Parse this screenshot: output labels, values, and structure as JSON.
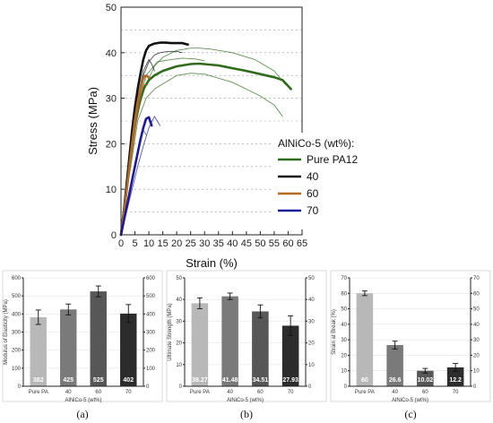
{
  "chart_data": [
    {
      "type": "line",
      "xlabel": "Strain (%)",
      "ylabel": "Stress (MPa)",
      "xlim": [
        0,
        65
      ],
      "ylim": [
        0,
        50
      ],
      "xticks": [
        "0",
        "5",
        "10",
        "15",
        "20",
        "25",
        "30",
        "35",
        "40",
        "45",
        "50",
        "55",
        "60",
        "65"
      ],
      "yticks": [
        "0",
        "10",
        "20",
        "30",
        "40",
        "50"
      ],
      "grid": true,
      "legend": {
        "title": "AlNiCo-5 (wt%):",
        "placement": "lower-right",
        "entries": [
          "Pure PA12",
          "40",
          "60",
          "70"
        ]
      },
      "series": [
        {
          "name": "Pure PA12",
          "color": "#2e6b1a",
          "curves": [
            {
              "emphasis": true,
              "x": [
                0,
                1,
                2,
                3,
                4,
                5,
                6,
                7,
                8,
                9,
                10,
                12,
                15,
                20,
                25,
                28,
                35,
                40,
                45,
                50,
                55,
                58,
                61
              ],
              "y": [
                0,
                5,
                10,
                15,
                20,
                24,
                27,
                30,
                32,
                33,
                34,
                35,
                36,
                37,
                37.5,
                37.6,
                37.2,
                36.6,
                36,
                35.3,
                34.6,
                34,
                32
              ]
            },
            {
              "emphasis": false,
              "x": [
                0,
                3,
                6,
                9,
                12,
                15,
                20,
                25,
                28,
                32,
                40,
                48,
                55,
                59
              ],
              "y": [
                0,
                14,
                27,
                33,
                37,
                39,
                40.5,
                41,
                41,
                40.8,
                40,
                38.5,
                36,
                33
              ]
            },
            {
              "emphasis": false,
              "x": [
                0,
                3,
                6,
                9,
                12,
                16,
                20,
                25,
                30,
                40,
                50,
                55,
                58
              ],
              "y": [
                0,
                13,
                25,
                30,
                32,
                33.5,
                35,
                35.5,
                35.3,
                33.5,
                30.5,
                28.5,
                26
              ]
            },
            {
              "emphasis": false,
              "x": [
                0,
                3,
                6,
                9,
                13,
                18,
                22,
                27,
                30
              ],
              "y": [
                0,
                14,
                28,
                35,
                38,
                38.5,
                38.8,
                38.6,
                38.2
              ]
            }
          ]
        },
        {
          "name": "40",
          "color": "#111111",
          "curves": [
            {
              "emphasis": true,
              "x": [
                0,
                1,
                2,
                3,
                4,
                5,
                6,
                7,
                8,
                9,
                10,
                12,
                14,
                16,
                18,
                20,
                22,
                24
              ],
              "y": [
                0,
                5,
                11,
                17,
                23,
                28,
                32,
                35.5,
                38.5,
                40.5,
                41.5,
                42,
                42.2,
                42.2,
                42.1,
                42.1,
                42.1,
                41.8
              ]
            },
            {
              "emphasis": false,
              "x": [
                0,
                2,
                4,
                6,
                8,
                10,
                12,
                14,
                16,
                18,
                20,
                22
              ],
              "y": [
                0,
                10,
                20,
                29,
                35,
                38,
                39.5,
                40,
                40.2,
                40.3,
                40.3,
                40
              ]
            },
            {
              "emphasis": false,
              "x": [
                0,
                2,
                4,
                6,
                8,
                10,
                11,
                12
              ],
              "y": [
                0,
                10,
                21,
                30,
                36,
                38.5,
                37.5,
                36
              ]
            }
          ]
        },
        {
          "name": "60",
          "color": "#b36a24",
          "curves": [
            {
              "emphasis": true,
              "x": [
                0,
                1,
                2,
                3,
                4,
                5,
                6,
                7,
                8,
                9,
                10
              ],
              "y": [
                0,
                4.5,
                9.5,
                15,
                20,
                25,
                29,
                32,
                34.5,
                35,
                34.5
              ]
            },
            {
              "emphasis": false,
              "x": [
                0,
                2,
                4,
                6,
                8,
                9
              ],
              "y": [
                0,
                10,
                20,
                29,
                34.5,
                34
              ]
            },
            {
              "emphasis": false,
              "x": [
                0,
                2,
                4,
                6,
                8,
                9.5
              ],
              "y": [
                0,
                9,
                18,
                27,
                33,
                33
              ]
            }
          ]
        },
        {
          "name": "70",
          "color": "#1a1a9a",
          "curves": [
            {
              "emphasis": true,
              "x": [
                0,
                1,
                2,
                3,
                4,
                5,
                6,
                7,
                8,
                9,
                10,
                11
              ],
              "y": [
                0,
                3,
                6,
                9,
                12,
                15,
                18,
                21,
                23.5,
                25.5,
                25.8,
                24
              ]
            },
            {
              "emphasis": false,
              "x": [
                0,
                2,
                4,
                6,
                8,
                10,
                12,
                14
              ],
              "y": [
                0,
                5,
                10,
                15,
                19.5,
                23.5,
                26,
                24
              ]
            },
            {
              "emphasis": false,
              "x": [
                0,
                2,
                4,
                6,
                8,
                9
              ],
              "y": [
                0,
                6,
                12,
                18,
                23,
                22
              ]
            }
          ]
        }
      ]
    },
    {
      "type": "bar",
      "panel_label": "(a)",
      "categories": [
        "Pure PA",
        "40",
        "60",
        "70"
      ],
      "values": [
        382,
        425,
        525,
        402
      ],
      "errors": [
        40,
        30,
        30,
        50
      ],
      "value_labels": [
        "382",
        "425",
        "525",
        "402"
      ],
      "ylabel": "Modulus of Elasticity (MPa)",
      "xlabel": "AlNiCo-5 (wt%)",
      "ylim": [
        0,
        600
      ],
      "yticks": [
        "0",
        "100",
        "200",
        "300",
        "400",
        "500",
        "600"
      ],
      "y2ticks": [
        "0",
        "100",
        "200",
        "300",
        "400",
        "500",
        "600"
      ],
      "colors": [
        "#b8b8b8",
        "#7a7a7a",
        "#575757",
        "#2c2c2c"
      ]
    },
    {
      "type": "bar",
      "panel_label": "(b)",
      "categories": [
        "Pure PA",
        "40",
        "60",
        "70"
      ],
      "values": [
        38.27,
        41.48,
        34.51,
        27.93
      ],
      "errors": [
        2.5,
        1.5,
        3,
        4.5
      ],
      "value_labels": [
        "38.27",
        "41.48",
        "34.51",
        "27.93"
      ],
      "ylabel": "Ultimate Strength (MPa)",
      "xlabel": "AlNiCo-5 (wt%)",
      "ylim": [
        0,
        50
      ],
      "yticks": [
        "0",
        "10",
        "20",
        "30",
        "40",
        "50"
      ],
      "y2ticks": [
        "0",
        "10",
        "20",
        "30",
        "40",
        "50"
      ],
      "colors": [
        "#b8b8b8",
        "#7a7a7a",
        "#575757",
        "#2c2c2c"
      ]
    },
    {
      "type": "bar",
      "panel_label": "(c)",
      "categories": [
        "Pure PA",
        "40",
        "60",
        "70"
      ],
      "values": [
        60,
        26.6,
        10.02,
        12.2
      ],
      "errors": [
        1.5,
        2.5,
        1.5,
        2.5
      ],
      "value_labels": [
        "60",
        "26.6",
        "10.02",
        "12.2"
      ],
      "ylabel": "Strain at Break (%)",
      "xlabel": "AlNiCo-5 (wt%)",
      "ylim": [
        0,
        70
      ],
      "yticks": [
        "0",
        "10",
        "20",
        "30",
        "40",
        "50",
        "60",
        "70"
      ],
      "y2ticks": [
        "0",
        "10",
        "20",
        "30",
        "40",
        "50",
        "60",
        "70"
      ],
      "colors": [
        "#b8b8b8",
        "#7a7a7a",
        "#575757",
        "#2c2c2c"
      ]
    }
  ]
}
